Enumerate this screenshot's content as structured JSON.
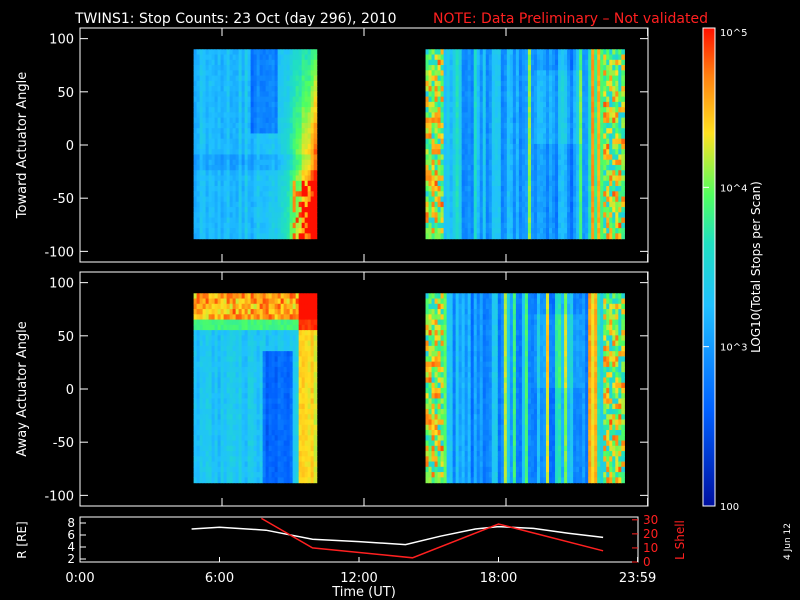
{
  "chart_data": {
    "type": "heatmap",
    "title": "TWINS1: Stop Counts: 23 Oct (day 296), 2010",
    "note": "NOTE: Data Preliminary – Not validated",
    "date_stamp": "4 Jun 12",
    "xlabel": "Time (UT)",
    "x_ticks": [
      "0:00",
      "6:00",
      "12:00",
      "18:00",
      "23:59"
    ],
    "x_tick_values_hours": [
      0,
      6,
      12,
      18,
      23.983
    ],
    "xlim_hours": [
      0,
      24
    ],
    "colorbar": {
      "label": "LOG10(Total Stops per Scan)",
      "range": [
        100,
        100000
      ],
      "tick_labels": [
        "100",
        "10^3",
        "10^4",
        "10^5"
      ],
      "scale": "log"
    },
    "panels": [
      {
        "name": "toward",
        "ylabel": "Toward Actuator Angle",
        "yticks": [
          -100,
          -50,
          0,
          50,
          100
        ],
        "ylim": [
          -110,
          110
        ],
        "data_angle_range": [
          -88,
          90
        ],
        "intervals_hours": [
          [
            4.8,
            10.0
          ],
          [
            14.6,
            23.0
          ]
        ],
        "features": "enhanced counts at end of each interval; high values at low angles near 8-10 h"
      },
      {
        "name": "away",
        "ylabel": "Away Actuator Angle",
        "yticks": [
          -100,
          -50,
          0,
          50,
          100
        ],
        "ylim": [
          -110,
          110
        ],
        "data_angle_range": [
          -88,
          90
        ],
        "intervals_hours": [
          [
            4.8,
            10.0
          ],
          [
            14.6,
            23.0
          ]
        ],
        "features": "high counts near +90 deg at start; low counts region 8-10 h"
      }
    ],
    "orbit": {
      "left_label": "R [RE]",
      "right_label": "L Shell",
      "left_ticks": [
        2,
        4,
        6,
        8
      ],
      "left_ylim": [
        1.5,
        9
      ],
      "right_ticks": [
        0,
        10,
        20,
        30
      ],
      "right_ylim": [
        0,
        32
      ],
      "series": [
        {
          "name": "R",
          "color": "#ffffff",
          "x": [
            4.8,
            6.0,
            8.0,
            10.0,
            12.0,
            14.0,
            15.5,
            17.0,
            18.0,
            19.5,
            21.0,
            22.5
          ],
          "y": [
            7.0,
            7.3,
            6.8,
            5.3,
            4.9,
            4.4,
            5.8,
            7.0,
            7.4,
            7.1,
            6.3,
            5.6
          ]
        },
        {
          "name": "L Shell",
          "color": "#ff2020",
          "x": [
            7.8,
            10.0,
            14.3,
            18.0,
            22.5
          ],
          "y": [
            31,
            10,
            3,
            27,
            8
          ]
        }
      ]
    }
  }
}
